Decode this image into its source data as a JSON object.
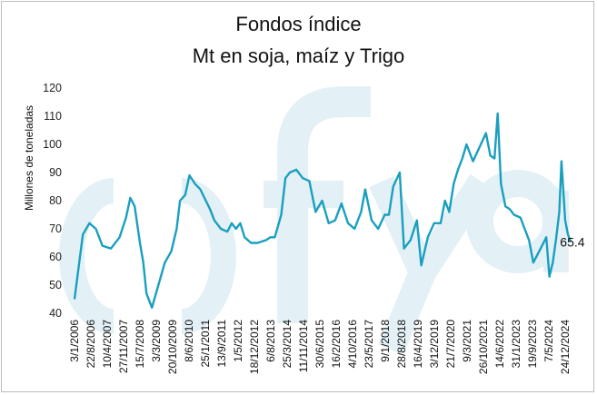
{
  "chart_data": {
    "type": "line",
    "title": "Fondos índice",
    "subtitle": "Mt en soja, maíz y Trigo",
    "ylabel": "Millones de toneladas",
    "xlabel": "",
    "ylim": [
      40,
      120
    ],
    "y_ticks": [
      40,
      50,
      60,
      70,
      80,
      90,
      100,
      110,
      120
    ],
    "x_tick_labels": [
      "3/1/2006",
      "22/8/2006",
      "10/4/2007",
      "27/11/2007",
      "15/7/2008",
      "3/3/2009",
      "20/10/2009",
      "8/6/2010",
      "25/1/2011",
      "13/9/2011",
      "1/5/2012",
      "18/12/2012",
      "6/8/2013",
      "25/3/2014",
      "11/11/2014",
      "30/6/2015",
      "16/2/2016",
      "4/10/2016",
      "23/5/2017",
      "9/1/2018",
      "28/8/2018",
      "16/4/2019",
      "3/12/2019",
      "21/7/2020",
      "9/3/2021",
      "26/10/2021",
      "14/6/2022",
      "31/1/2023",
      "19/9/2023",
      "7/5/2024",
      "24/12/2024"
    ],
    "last_value_label": "65.4",
    "line_color": "#1a9fbf",
    "watermark_color": "#e3f1f7",
    "grid": false,
    "series": [
      {
        "x": [
          "2006-01-03",
          "2006-03-01",
          "2006-05-01",
          "2006-08-01",
          "2006-11-01",
          "2007-02-01",
          "2007-06-01",
          "2007-10-01",
          "2008-01-01",
          "2008-03-01",
          "2008-05-01",
          "2008-07-15",
          "2008-09-01",
          "2008-10-15",
          "2009-01-01",
          "2009-04-01",
          "2009-07-01",
          "2009-10-01",
          "2009-12-15",
          "2010-02-01",
          "2010-04-15",
          "2010-06-15",
          "2010-09-01",
          "2010-11-15",
          "2011-02-01",
          "2011-04-01",
          "2011-06-01",
          "2011-09-01",
          "2011-12-01",
          "2012-02-01",
          "2012-04-01",
          "2012-06-01",
          "2012-08-01",
          "2012-11-01",
          "2013-02-01",
          "2013-06-01",
          "2013-08-01",
          "2013-10-01",
          "2014-01-01",
          "2014-03-01",
          "2014-05-01",
          "2014-08-01",
          "2014-11-01",
          "2015-02-01",
          "2015-05-01",
          "2015-08-01",
          "2015-11-01",
          "2016-02-01",
          "2016-05-01",
          "2016-08-01",
          "2016-11-01",
          "2017-02-01",
          "2017-04-01",
          "2017-07-01",
          "2017-10-01",
          "2018-01-01",
          "2018-03-01",
          "2018-05-01",
          "2018-08-01",
          "2018-10-01",
          "2019-01-01",
          "2019-04-01",
          "2019-06-01",
          "2019-09-01",
          "2019-12-01",
          "2020-03-01",
          "2020-05-01",
          "2020-07-01",
          "2020-09-01",
          "2020-11-01",
          "2021-01-01",
          "2021-03-01",
          "2021-06-01",
          "2021-09-01",
          "2021-12-01",
          "2022-02-01",
          "2022-04-01",
          "2022-05-15",
          "2022-07-01",
          "2022-09-01",
          "2022-11-01",
          "2023-01-01",
          "2023-04-01",
          "2023-06-01",
          "2023-08-01",
          "2023-10-01",
          "2023-12-01",
          "2024-02-01",
          "2024-04-01",
          "2024-05-15",
          "2024-07-01",
          "2024-08-15",
          "2024-10-01",
          "2024-11-01",
          "2024-12-24",
          "2025-02-01",
          "2025-03-15"
        ],
        "values": [
          45,
          56,
          68,
          72,
          70,
          64,
          63,
          67,
          74,
          81,
          78,
          65,
          58,
          47,
          42,
          50,
          58,
          62,
          70,
          80,
          82,
          89,
          86,
          84,
          80,
          77,
          73,
          70,
          69,
          72,
          70,
          72,
          67,
          65,
          65,
          66,
          67,
          67,
          75,
          88,
          90,
          91,
          88,
          87,
          76,
          80,
          72,
          73,
          79,
          72,
          70,
          76,
          84,
          73,
          70,
          75,
          75,
          85,
          90,
          63,
          66,
          73,
          57,
          67,
          72,
          72,
          80,
          76,
          86,
          91,
          95,
          100,
          94,
          99,
          104,
          96,
          95,
          111,
          86,
          78,
          77,
          75,
          74,
          70,
          66,
          58,
          61,
          64,
          67,
          53,
          58,
          66,
          76,
          94,
          73,
          68,
          65.4
        ]
      }
    ]
  }
}
